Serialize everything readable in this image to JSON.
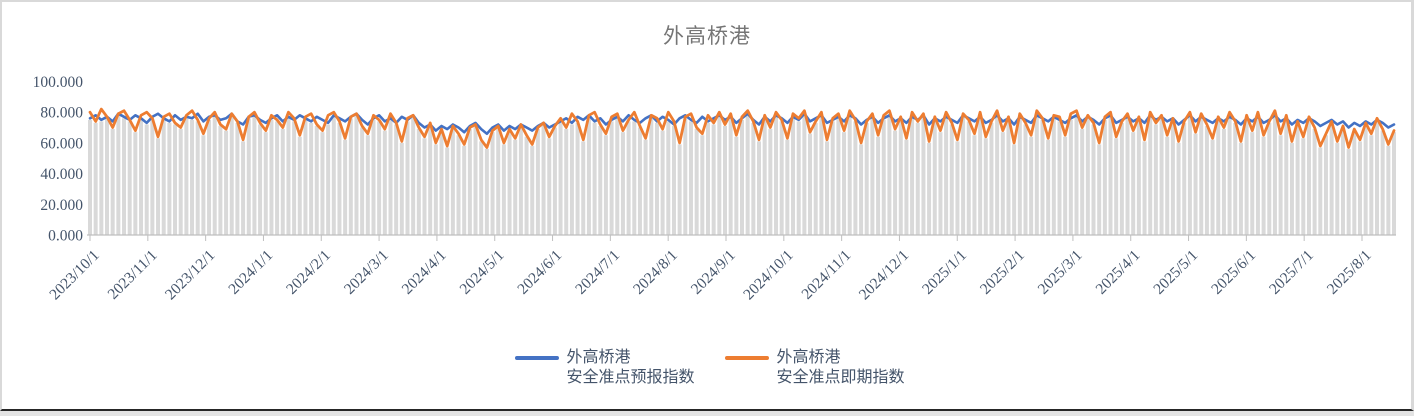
{
  "chart_data": {
    "type": "line",
    "title": "外高桥港",
    "title_color": "#757575",
    "ylim": [
      0,
      100
    ],
    "y_ticks": [
      "0.000",
      "20.000",
      "40.000",
      "60.000",
      "80.000",
      "100.000"
    ],
    "x_tick_labels": [
      "2023/10/1",
      "2023/11/1",
      "2023/12/1",
      "2024/1/1",
      "2024/2/1",
      "2024/3/1",
      "2024/4/1",
      "2024/5/1",
      "2024/6/1",
      "2024/7/1",
      "2024/8/1",
      "2024/9/1",
      "2024/10/1",
      "2024/11/1",
      "2024/12/1",
      "2025/1/1",
      "2025/2/1",
      "2025/3/1",
      "2025/4/1",
      "2025/5/1",
      "2025/6/1",
      "2025/7/1",
      "2025/8/1"
    ],
    "grid": "off",
    "drop_lines": true,
    "drop_lines_color": "#d9d9d9",
    "axis_color": "#bfbfbf",
    "label_color": "#44546A",
    "legend_position": "bottom",
    "series": [
      {
        "name": "外高桥港 安全准点预报指数",
        "name_line1": "外高桥港",
        "name_line2": "安全准点预报指数",
        "color": "#4472C4",
        "values": [
          76,
          78,
          75,
          77,
          74,
          79,
          77,
          75,
          78,
          76,
          73,
          77,
          79,
          76,
          74,
          78,
          75,
          77,
          76,
          79,
          74,
          77,
          78,
          75,
          76,
          79,
          74,
          72,
          77,
          78,
          75,
          73,
          76,
          78,
          74,
          77,
          75,
          78,
          76,
          74,
          77,
          75,
          73,
          78,
          76,
          74,
          77,
          79,
          75,
          72,
          76,
          78,
          74,
          76,
          73,
          77,
          75,
          78,
          73,
          70,
          72,
          68,
          71,
          69,
          72,
          70,
          67,
          71,
          73,
          69,
          66,
          70,
          72,
          68,
          71,
          69,
          72,
          70,
          68,
          71,
          73,
          70,
          72,
          74,
          76,
          73,
          77,
          75,
          78,
          74,
          76,
          72,
          75,
          77,
          74,
          78,
          75,
          73,
          76,
          78,
          74,
          77,
          75,
          72,
          76,
          78,
          75,
          73,
          77,
          74,
          76,
          78,
          75,
          77,
          73,
          76,
          79,
          75,
          72,
          77,
          74,
          78,
          76,
          73,
          77,
          75,
          79,
          74,
          76,
          78,
          73,
          75,
          77,
          74,
          78,
          76,
          72,
          75,
          77,
          73,
          76,
          78,
          74,
          76,
          73,
          77,
          75,
          78,
          72,
          76,
          74,
          77,
          75,
          73,
          78,
          76,
          74,
          77,
          73,
          75,
          78,
          74,
          76,
          72,
          77,
          75,
          73,
          78,
          76,
          74,
          77,
          75,
          73,
          76,
          78,
          74,
          77,
          75,
          72,
          76,
          78,
          73,
          75,
          77,
          74,
          76,
          73,
          78,
          75,
          77,
          74,
          76,
          72,
          75,
          78,
          74,
          77,
          75,
          73,
          76,
          74,
          77,
          75,
          72,
          76,
          74,
          77,
          73,
          75,
          78,
          74,
          76,
          72,
          75,
          73,
          76,
          74,
          71,
          73,
          75,
          72,
          74,
          70,
          73,
          71,
          74,
          72,
          75,
          73,
          70,
          72
        ]
      },
      {
        "name": "外高桥港 安全准点即期指数",
        "name_line1": "外高桥港",
        "name_line2": "安全准点即期指数",
        "color": "#ED7D31",
        "values": [
          80,
          74,
          82,
          77,
          70,
          79,
          81,
          75,
          68,
          78,
          80,
          76,
          64,
          77,
          79,
          73,
          70,
          78,
          81,
          75,
          66,
          76,
          80,
          72,
          69,
          79,
          74,
          62,
          77,
          80,
          73,
          68,
          78,
          75,
          70,
          80,
          76,
          65,
          77,
          79,
          72,
          68,
          78,
          80,
          74,
          63,
          77,
          79,
          71,
          66,
          78,
          75,
          69,
          79,
          73,
          61,
          76,
          78,
          70,
          64,
          73,
          60,
          69,
          58,
          71,
          66,
          59,
          70,
          72,
          62,
          57,
          68,
          71,
          60,
          69,
          63,
          72,
          65,
          59,
          70,
          73,
          64,
          71,
          76,
          70,
          79,
          74,
          62,
          78,
          80,
          72,
          66,
          77,
          79,
          68,
          75,
          80,
          71,
          63,
          78,
          76,
          69,
          80,
          74,
          60,
          77,
          79,
          70,
          66,
          78,
          73,
          80,
          72,
          79,
          65,
          77,
          81,
          74,
          62,
          78,
          70,
          80,
          75,
          63,
          79,
          76,
          81,
          67,
          74,
          80,
          62,
          76,
          79,
          68,
          81,
          75,
          60,
          74,
          79,
          65,
          78,
          81,
          69,
          77,
          63,
          80,
          74,
          79,
          61,
          77,
          68,
          80,
          73,
          62,
          79,
          75,
          66,
          80,
          64,
          74,
          81,
          68,
          77,
          60,
          79,
          73,
          65,
          81,
          76,
          63,
          78,
          77,
          65,
          79,
          81,
          70,
          78,
          73,
          60,
          77,
          80,
          64,
          74,
          79,
          68,
          77,
          62,
          80,
          73,
          78,
          65,
          76,
          61,
          74,
          80,
          67,
          79,
          72,
          63,
          77,
          70,
          80,
          74,
          61,
          78,
          68,
          80,
          65,
          74,
          81,
          66,
          78,
          61,
          74,
          64,
          77,
          70,
          58,
          66,
          74,
          61,
          71,
          57,
          69,
          62,
          73,
          66,
          76,
          69,
          59,
          68
        ]
      }
    ]
  }
}
